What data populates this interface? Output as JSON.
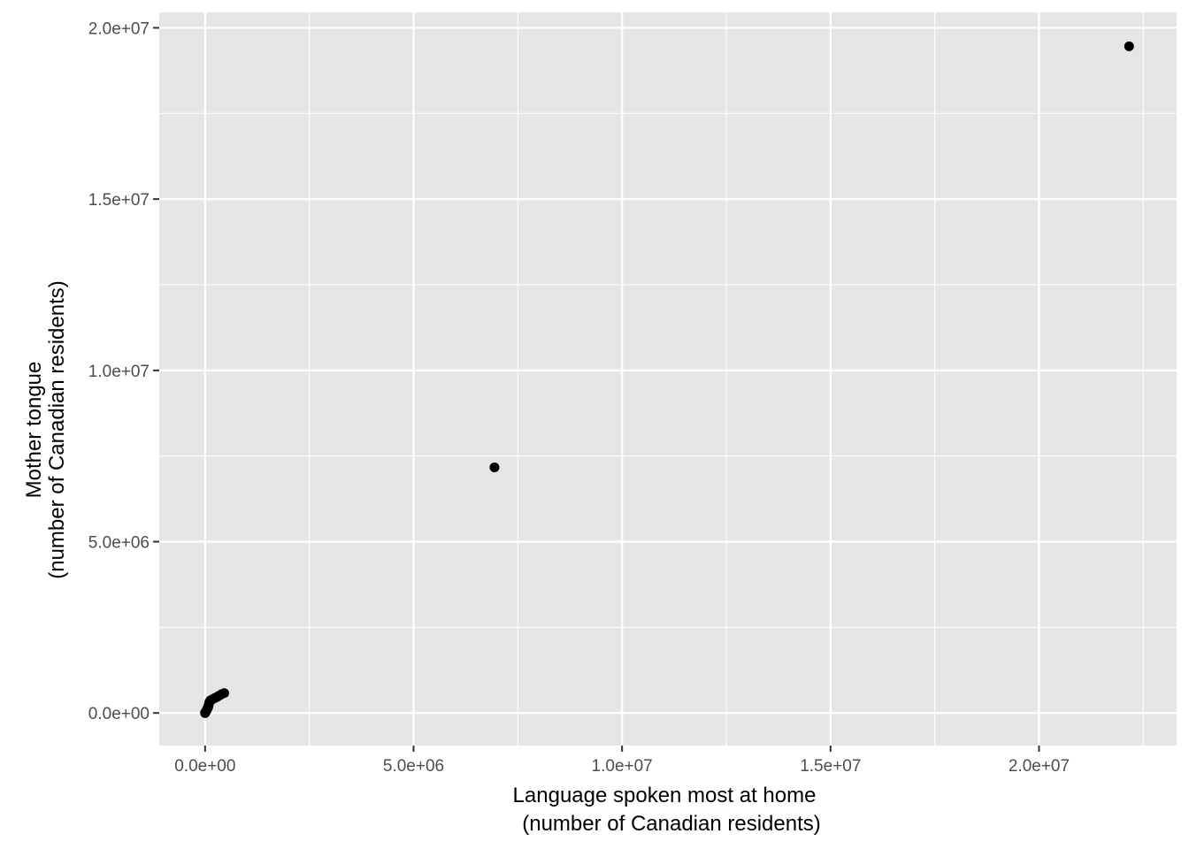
{
  "chart_data": {
    "type": "scatter",
    "title": "",
    "xlabel": [
      "Language spoken most at home",
      "(number of Canadian residents)"
    ],
    "ylabel": [
      "Mother tongue",
      "(number of Canadian residents)"
    ],
    "xlim": [
      -1100000,
      23300000
    ],
    "ylim": [
      -950000,
      20450000
    ],
    "x_ticks": [
      0,
      5000000,
      10000000,
      15000000,
      20000000
    ],
    "x_tick_labels": [
      "0.0e+00",
      "5.0e+06",
      "1.0e+07",
      "1.5e+07",
      "2.0e+07"
    ],
    "y_ticks": [
      0,
      5000000,
      10000000,
      15000000,
      20000000
    ],
    "y_tick_labels": [
      "0.0e+00",
      "5.0e+06",
      "1.0e+07",
      "1.5e+07",
      "2.0e+07"
    ],
    "grid": true,
    "colors": {
      "panel": "#e5e5e5",
      "grid": "#ffffff",
      "point": "#000000",
      "tick_text": "#4d4d4d",
      "tick_mark": "#333333"
    },
    "points": [
      {
        "x": 22160000,
        "y": 19460000
      },
      {
        "x": 6940000,
        "y": 7170000
      },
      {
        "x": 460000,
        "y": 580000
      },
      {
        "x": 400000,
        "y": 550000
      },
      {
        "x": 340000,
        "y": 510000
      },
      {
        "x": 290000,
        "y": 470000
      },
      {
        "x": 240000,
        "y": 440000
      },
      {
        "x": 190000,
        "y": 410000
      },
      {
        "x": 150000,
        "y": 380000
      },
      {
        "x": 120000,
        "y": 360000
      },
      {
        "x": 100000,
        "y": 310000
      },
      {
        "x": 90000,
        "y": 250000
      },
      {
        "x": 80000,
        "y": 200000
      },
      {
        "x": 70000,
        "y": 160000
      },
      {
        "x": 55000,
        "y": 130000
      },
      {
        "x": 45000,
        "y": 100000
      },
      {
        "x": 35000,
        "y": 80000
      },
      {
        "x": 28000,
        "y": 60000
      },
      {
        "x": 20000,
        "y": 45000
      },
      {
        "x": 14000,
        "y": 30000
      },
      {
        "x": 9000,
        "y": 20000
      },
      {
        "x": 5000,
        "y": 12000
      },
      {
        "x": 3000,
        "y": 7000
      },
      {
        "x": 1500,
        "y": 4000
      },
      {
        "x": 500,
        "y": 1500
      },
      {
        "x": 200,
        "y": 600
      },
      {
        "x": 50,
        "y": 200
      }
    ]
  }
}
